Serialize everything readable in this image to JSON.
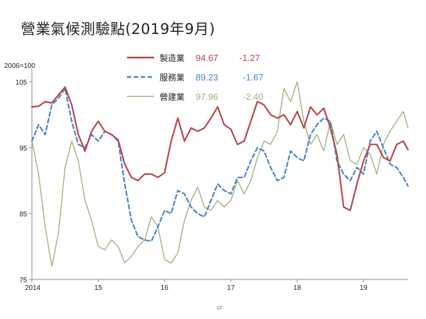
{
  "page": {
    "title": "營業氣候測驗點(2019年9月)",
    "base_label": "2006=100",
    "page_number": "12"
  },
  "chart_data": {
    "type": "line",
    "title": "營業氣候測驗點(2019年9月)",
    "ylabel": "2006=100",
    "xlabel": "",
    "ylim": [
      75,
      107
    ],
    "yticks": [
      75,
      85,
      95,
      105
    ],
    "x_tick_labels": [
      "2014",
      "15",
      "16",
      "17",
      "18",
      "19"
    ],
    "x_tick_positions": [
      2014.0,
      2015.0,
      2016.0,
      2017.0,
      2018.0,
      2019.0
    ],
    "xlim": [
      2014.0,
      2019.67
    ],
    "grid": false,
    "legend_placement": "top-center",
    "series": [
      {
        "name": "製造業",
        "value": "94.67",
        "change": "-1.27",
        "color": "#b5464b",
        "style": "solid",
        "x": [
          2014.0,
          2014.1,
          2014.2,
          2014.3,
          2014.4,
          2014.5,
          2014.6,
          2014.7,
          2014.8,
          2014.9,
          2015.0,
          2015.1,
          2015.2,
          2015.3,
          2015.4,
          2015.5,
          2015.6,
          2015.7,
          2015.8,
          2015.9,
          2016.0,
          2016.1,
          2016.2,
          2016.3,
          2016.4,
          2016.5,
          2016.6,
          2016.7,
          2016.8,
          2016.9,
          2017.0,
          2017.1,
          2017.2,
          2017.3,
          2017.4,
          2017.5,
          2017.6,
          2017.7,
          2017.8,
          2017.9,
          2018.0,
          2018.1,
          2018.2,
          2018.3,
          2018.4,
          2018.5,
          2018.6,
          2018.7,
          2018.8,
          2018.9,
          2019.0,
          2019.1,
          2019.2,
          2019.3,
          2019.4,
          2019.5,
          2019.6,
          2019.67
        ],
        "y": [
          101.2,
          101.3,
          102.0,
          101.8,
          103.0,
          104.2,
          101.5,
          97.0,
          94.5,
          97.5,
          99.0,
          97.5,
          97.0,
          96.2,
          92.5,
          90.5,
          90.0,
          91.0,
          91.0,
          90.5,
          91.2,
          96.0,
          99.5,
          96.0,
          98.0,
          97.5,
          98.0,
          99.5,
          101.2,
          98.5,
          97.8,
          95.5,
          96.0,
          99.0,
          102.0,
          101.5,
          100.0,
          99.5,
          100.0,
          98.5,
          100.5,
          98.0,
          101.2,
          100.0,
          101.0,
          98.0,
          94.0,
          86.0,
          85.5,
          89.5,
          93.0,
          95.5,
          95.5,
          93.5,
          93.0,
          95.5,
          96.0,
          94.7
        ]
      },
      {
        "name": "服務業",
        "value": "89.23",
        "change": "-1.67",
        "color": "#4a84c4",
        "style": "dashed",
        "x": [
          2014.0,
          2014.1,
          2014.2,
          2014.3,
          2014.4,
          2014.5,
          2014.6,
          2014.7,
          2014.8,
          2014.9,
          2015.0,
          2015.1,
          2015.2,
          2015.3,
          2015.4,
          2015.5,
          2015.6,
          2015.7,
          2015.8,
          2015.9,
          2016.0,
          2016.1,
          2016.2,
          2016.3,
          2016.4,
          2016.5,
          2016.6,
          2016.7,
          2016.8,
          2016.9,
          2017.0,
          2017.1,
          2017.2,
          2017.3,
          2017.4,
          2017.5,
          2017.6,
          2017.7,
          2017.8,
          2017.9,
          2018.0,
          2018.1,
          2018.2,
          2018.3,
          2018.4,
          2018.5,
          2018.6,
          2018.7,
          2018.8,
          2018.9,
          2019.0,
          2019.1,
          2019.2,
          2019.3,
          2019.4,
          2019.5,
          2019.6,
          2019.67
        ],
        "y": [
          96.0,
          98.5,
          97.0,
          101.5,
          102.5,
          104.0,
          99.0,
          95.5,
          95.0,
          97.0,
          96.0,
          97.5,
          97.0,
          96.0,
          89.5,
          84.0,
          81.5,
          81.0,
          80.8,
          83.0,
          85.5,
          85.0,
          88.5,
          88.0,
          86.0,
          85.0,
          84.5,
          87.0,
          89.5,
          88.5,
          88.0,
          90.5,
          90.5,
          93.0,
          95.0,
          94.5,
          92.0,
          90.0,
          90.5,
          94.5,
          93.5,
          93.0,
          97.0,
          98.5,
          99.5,
          99.0,
          93.0,
          91.0,
          90.0,
          92.0,
          91.0,
          96.0,
          97.5,
          95.0,
          92.5,
          92.0,
          90.5,
          89.2
        ]
      },
      {
        "name": "營建業",
        "value": "97.96",
        "change": "-2.40",
        "color": "#a2b082",
        "style": "solid",
        "x": [
          2014.0,
          2014.1,
          2014.2,
          2014.3,
          2014.4,
          2014.5,
          2014.6,
          2014.7,
          2014.8,
          2014.9,
          2015.0,
          2015.1,
          2015.2,
          2015.3,
          2015.4,
          2015.5,
          2015.6,
          2015.7,
          2015.8,
          2015.9,
          2016.0,
          2016.1,
          2016.2,
          2016.3,
          2016.4,
          2016.5,
          2016.6,
          2016.7,
          2016.8,
          2016.9,
          2017.0,
          2017.1,
          2017.2,
          2017.3,
          2017.4,
          2017.5,
          2017.6,
          2017.7,
          2017.8,
          2017.9,
          2018.0,
          2018.1,
          2018.2,
          2018.3,
          2018.4,
          2018.5,
          2018.6,
          2018.7,
          2018.8,
          2018.9,
          2019.0,
          2019.1,
          2019.2,
          2019.3,
          2019.4,
          2019.5,
          2019.6,
          2019.67
        ],
        "y": [
          96.0,
          91.0,
          83.0,
          77.0,
          82.0,
          92.0,
          96.0,
          93.0,
          87.0,
          84.0,
          80.0,
          79.5,
          81.0,
          80.0,
          77.5,
          78.5,
          80.0,
          81.0,
          84.5,
          83.0,
          78.0,
          77.5,
          79.0,
          84.0,
          87.0,
          89.0,
          86.0,
          85.5,
          87.0,
          86.0,
          87.0,
          90.0,
          88.0,
          90.0,
          93.5,
          96.0,
          95.5,
          97.5,
          104.0,
          102.0,
          105.0,
          99.0,
          95.5,
          97.0,
          94.5,
          99.0,
          95.5,
          97.0,
          93.0,
          92.5,
          95.0,
          94.0,
          91.0,
          95.5,
          97.5,
          99.0,
          100.5,
          98.0
        ]
      }
    ]
  }
}
